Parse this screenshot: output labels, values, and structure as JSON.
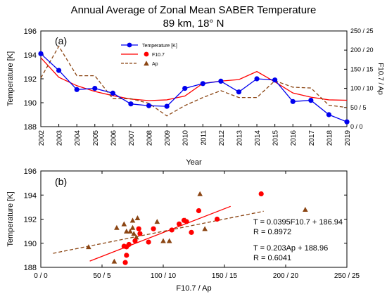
{
  "title": "Annual Average of Zonal Mean SABER Temperature",
  "subtitle": "89 km, 18° N",
  "chart_data": [
    {
      "type": "line",
      "panel_label": "(a)",
      "x": [
        2002,
        2003,
        2004,
        2005,
        2006,
        2007,
        2008,
        2009,
        2010,
        2011,
        2012,
        2013,
        2014,
        2015,
        2016,
        2017,
        2018,
        2019
      ],
      "x_ticks": [
        "2002",
        "2003",
        "2004",
        "2005",
        "2006",
        "2007",
        "2008",
        "2009",
        "2010",
        "2011",
        "2012",
        "2013",
        "2014",
        "2015",
        "2016",
        "2017",
        "2018",
        "2019"
      ],
      "xlabel": "Year",
      "ylabel": "Temperature [K]",
      "ylim": [
        188,
        196
      ],
      "y_ticks": [
        "188",
        "190",
        "192",
        "194",
        "196"
      ],
      "y2label": "F10.7 / Ap",
      "y2lim": [
        0,
        250
      ],
      "y2_ticks": [
        "0 / 0",
        "50 / 5",
        "100 / 10",
        "150 / 15",
        "200 / 20",
        "250 / 25"
      ],
      "series": [
        {
          "name": "Temperature [K]",
          "axis": "left",
          "color": "#0000ee",
          "style": "solid-circle",
          "values": [
            194.1,
            192.7,
            191.1,
            191.2,
            190.8,
            189.9,
            189.75,
            189.7,
            191.2,
            191.6,
            191.8,
            190.9,
            192.0,
            191.9,
            190.1,
            190.2,
            189.0,
            188.4
          ]
        },
        {
          "name": "F10.7",
          "axis": "right",
          "color": "#ff0000",
          "style": "solid",
          "values": [
            180,
            129,
            107,
            92,
            81,
            72,
            68,
            70,
            80,
            113,
            119,
            123,
            144,
            117,
            88,
            77,
            70,
            69
          ]
        },
        {
          "name": "Ap",
          "axis": "right",
          "scale": 10,
          "color": "#8b4513",
          "style": "dashed",
          "values": [
            12.7,
            21.0,
            13.3,
            13.3,
            7.3,
            7.3,
            6.1,
            2.8,
            5.5,
            7.6,
            9.4,
            7.6,
            7.6,
            12.0,
            10.3,
            10.1,
            5.6,
            5.0
          ]
        }
      ]
    },
    {
      "type": "scatter",
      "panel_label": "(b)",
      "xlabel": "F10.7 / Ap",
      "ylabel": "Temperature [K]",
      "xlim": [
        0,
        250
      ],
      "x_ticks": [
        "0 / 0",
        "50 / 5",
        "100 / 10",
        "150 / 15",
        "200 / 20",
        "250 / 25"
      ],
      "ylim": [
        188,
        196
      ],
      "y_ticks": [
        "188",
        "190",
        "192",
        "194",
        "196"
      ],
      "series": [
        {
          "name": "F10.7",
          "color": "#ff0000",
          "marker": "circle",
          "x": [
            180,
            129,
            107,
            92,
            81,
            72,
            68,
            70,
            80,
            113,
            119,
            123,
            144,
            117,
            88,
            77,
            70,
            69
          ],
          "y": [
            194.1,
            192.7,
            191.1,
            191.2,
            190.8,
            189.9,
            189.75,
            189.7,
            191.2,
            191.6,
            191.8,
            190.9,
            192.0,
            191.9,
            190.1,
            190.2,
            189.0,
            188.4
          ]
        },
        {
          "name": "Ap",
          "scale": 10,
          "color": "#8b4513",
          "marker": "triangle",
          "x": [
            21.6,
            13.0,
            6.2,
            7.5,
            7.0,
            7.5,
            7.9,
            6.8,
            10.5,
            11.8,
            7.8,
            10.0,
            7.6,
            13.4,
            9.5,
            7.3,
            6.0,
            3.9
          ],
          "y": [
            192.8,
            194.1,
            191.3,
            191.3,
            191.0,
            191.9,
            192.1,
            191.6,
            190.2,
            191.9,
            190.5,
            190.2,
            190.8,
            191.2,
            191.8,
            191.0,
            188.5,
            189.7
          ]
        }
      ],
      "fits": [
        {
          "name": "F10.7 fit",
          "color": "#ff0000",
          "style": "solid",
          "slope": 0.0395,
          "intercept": 186.94,
          "x_range": [
            40,
            155
          ]
        },
        {
          "name": "Ap fit",
          "color": "#8b4513",
          "style": "dashed",
          "slope": 0.0203,
          "intercept": 188.96,
          "x_range": [
            10,
            182
          ]
        }
      ],
      "annotations": [
        "T = 0.0395F10.7 + 186.94",
        "R = 0.8972",
        "T = 0.203Ap + 188.96",
        "R = 0.6041"
      ]
    }
  ]
}
